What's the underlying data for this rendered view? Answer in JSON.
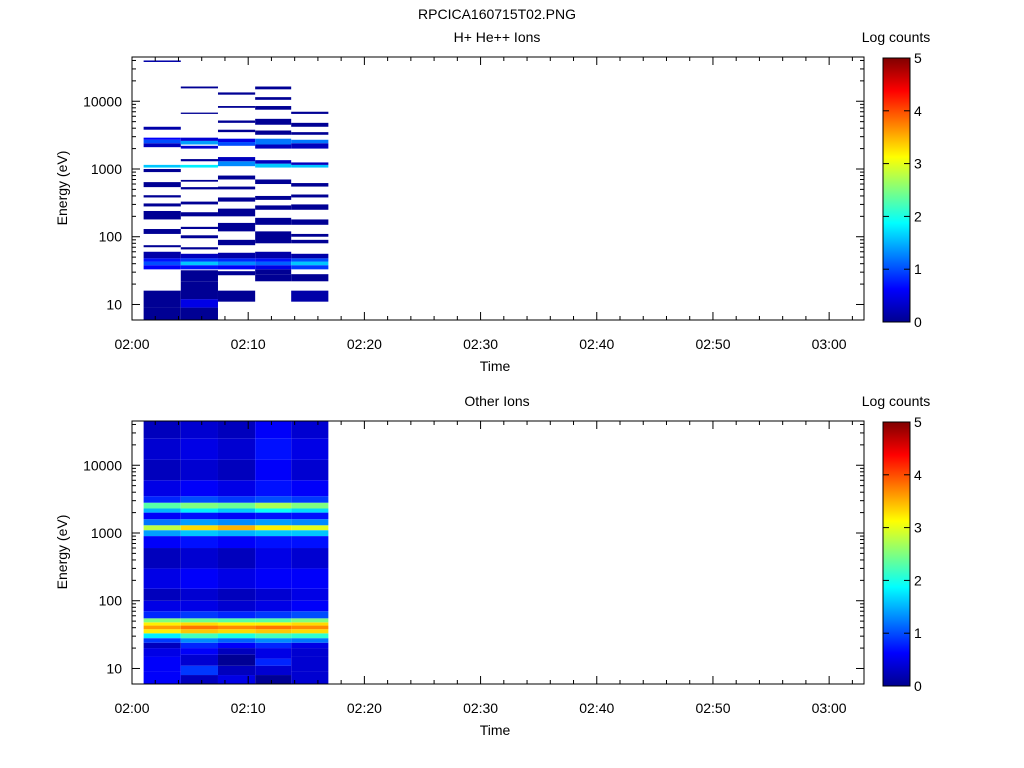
{
  "figure": {
    "title": "RPCICA160715T02.PNG"
  },
  "colorbar": {
    "label": "Log counts",
    "ticks": [
      "0",
      "1",
      "2",
      "3",
      "4",
      "5"
    ],
    "range": [
      0,
      5
    ],
    "colormap": "jet"
  },
  "chart_data": [
    {
      "type": "heatmap",
      "title": "H+ He++ Ions",
      "xlabel": "Time",
      "ylabel": "Energy (eV)",
      "x_ticks": [
        "02:00",
        "02:10",
        "02:20",
        "02:30",
        "02:40",
        "02:50",
        "03:00"
      ],
      "xlim_minutes": [
        0,
        63
      ],
      "y_ticks": [
        "10",
        "100",
        "1000",
        "10000"
      ],
      "ylim": [
        5.9,
        45000
      ],
      "y_scale": "log",
      "time_bins_minutes": [
        [
          1,
          4.2
        ],
        [
          4.2,
          7.4
        ],
        [
          7.4,
          10.6
        ],
        [
          10.6,
          13.7
        ],
        [
          13.7,
          16.9
        ]
      ],
      "columns": [
        [
          [
            6,
            9,
            0.1
          ],
          [
            9,
            16,
            0.1
          ],
          [
            33,
            38,
            0.6
          ],
          [
            38,
            43,
            1.0
          ],
          [
            43,
            48,
            0.7
          ],
          [
            48,
            60,
            0.2
          ],
          [
            70,
            75,
            0.1
          ],
          [
            110,
            130,
            0.1
          ],
          [
            180,
            240,
            0.1
          ],
          [
            280,
            310,
            0.1
          ],
          [
            380,
            410,
            0.1
          ],
          [
            540,
            640,
            0.1
          ],
          [
            900,
            1000,
            0.1
          ],
          [
            1050,
            1150,
            1.6
          ],
          [
            2100,
            2400,
            0.3
          ],
          [
            2400,
            2700,
            1.0
          ],
          [
            2700,
            2900,
            0.6
          ],
          [
            3800,
            4200,
            0.2
          ],
          [
            38000,
            40000,
            0.2
          ]
        ],
        [
          [
            6,
            9,
            0.1
          ],
          [
            9,
            12,
            0.5
          ],
          [
            12,
            22,
            0.1
          ],
          [
            22,
            32,
            0.1
          ],
          [
            33,
            38,
            0.7
          ],
          [
            38,
            43,
            1.6
          ],
          [
            43,
            48,
            0.9
          ],
          [
            48,
            56,
            0.3
          ],
          [
            65,
            70,
            0.1
          ],
          [
            95,
            105,
            0.1
          ],
          [
            130,
            140,
            0.1
          ],
          [
            200,
            230,
            0.1
          ],
          [
            300,
            330,
            0.1
          ],
          [
            500,
            540,
            0.1
          ],
          [
            650,
            690,
            0.1
          ],
          [
            1050,
            1150,
            1.8
          ],
          [
            1300,
            1400,
            0.1
          ],
          [
            2000,
            2200,
            0.4
          ],
          [
            2300,
            2600,
            1.4
          ],
          [
            2600,
            2900,
            0.4
          ],
          [
            6500,
            6800,
            0.1
          ],
          [
            15500,
            16500,
            0.1
          ]
        ],
        [
          [
            11,
            16,
            0.1
          ],
          [
            27,
            31,
            0.1
          ],
          [
            33,
            38,
            0.6
          ],
          [
            38,
            43,
            1.3
          ],
          [
            43,
            48,
            0.8
          ],
          [
            48,
            58,
            0.2
          ],
          [
            75,
            90,
            0.1
          ],
          [
            120,
            160,
            0.1
          ],
          [
            200,
            260,
            0.1
          ],
          [
            330,
            380,
            0.1
          ],
          [
            500,
            550,
            0.1
          ],
          [
            700,
            800,
            0.1
          ],
          [
            1100,
            1300,
            1.3
          ],
          [
            1300,
            1500,
            0.3
          ],
          [
            2200,
            2500,
            1.0
          ],
          [
            2500,
            2800,
            0.5
          ],
          [
            3500,
            3800,
            0.1
          ],
          [
            4800,
            5200,
            0.1
          ],
          [
            8000,
            8500,
            0.1
          ],
          [
            12500,
            13500,
            0.1
          ]
        ],
        [
          [
            22,
            28,
            0.1
          ],
          [
            28,
            33,
            0.1
          ],
          [
            33,
            38,
            0.5
          ],
          [
            38,
            43,
            1.1
          ],
          [
            43,
            48,
            0.7
          ],
          [
            48,
            60,
            0.2
          ],
          [
            80,
            120,
            0.1
          ],
          [
            150,
            190,
            0.1
          ],
          [
            250,
            290,
            0.1
          ],
          [
            350,
            400,
            0.1
          ],
          [
            600,
            700,
            0.1
          ],
          [
            1050,
            1200,
            1.6
          ],
          [
            1200,
            1350,
            0.3
          ],
          [
            2000,
            2300,
            0.3
          ],
          [
            2300,
            2800,
            1.2
          ],
          [
            3200,
            3700,
            0.1
          ],
          [
            4500,
            5500,
            0.1
          ],
          [
            7500,
            8500,
            0.1
          ],
          [
            10500,
            11500,
            0.1
          ],
          [
            15000,
            16500,
            0.1
          ]
        ],
        [
          [
            11,
            16,
            0.2
          ],
          [
            22,
            28,
            0.1
          ],
          [
            33,
            38,
            0.9
          ],
          [
            38,
            43,
            1.6
          ],
          [
            43,
            48,
            1.0
          ],
          [
            48,
            56,
            0.2
          ],
          [
            80,
            90,
            0.1
          ],
          [
            100,
            110,
            0.1
          ],
          [
            150,
            180,
            0.1
          ],
          [
            250,
            300,
            0.1
          ],
          [
            380,
            420,
            0.1
          ],
          [
            550,
            620,
            0.1
          ],
          [
            1050,
            1150,
            1.6
          ],
          [
            1150,
            1250,
            0.3
          ],
          [
            2000,
            2400,
            0.3
          ],
          [
            2400,
            2700,
            1.2
          ],
          [
            3200,
            3500,
            0.1
          ],
          [
            4200,
            4800,
            0.1
          ],
          [
            6500,
            7000,
            0.1
          ]
        ]
      ]
    },
    {
      "type": "heatmap",
      "title": "Other Ions",
      "xlabel": "Time",
      "ylabel": "Energy (eV)",
      "x_ticks": [
        "02:00",
        "02:10",
        "02:20",
        "02:30",
        "02:40",
        "02:50",
        "03:00"
      ],
      "xlim_minutes": [
        0,
        63
      ],
      "y_ticks": [
        "10",
        "100",
        "1000",
        "10000"
      ],
      "ylim": [
        5.9,
        45000
      ],
      "y_scale": "log",
      "time_bins_minutes": [
        [
          1,
          4.2
        ],
        [
          4.2,
          7.4
        ],
        [
          7.4,
          10.6
        ],
        [
          10.6,
          13.7
        ],
        [
          13.7,
          16.9
        ]
      ],
      "columns": [
        [
          [
            6,
            9,
            0.6
          ],
          [
            9,
            15,
            0.6
          ],
          [
            15,
            20,
            0.5
          ],
          [
            20,
            24,
            0.3
          ],
          [
            24,
            28,
            0.9
          ],
          [
            28,
            33,
            1.8
          ],
          [
            33,
            38,
            3.2
          ],
          [
            38,
            43,
            3.6
          ],
          [
            43,
            48,
            3.2
          ],
          [
            48,
            55,
            2.5
          ],
          [
            55,
            70,
            0.8
          ],
          [
            70,
            100,
            0.5
          ],
          [
            100,
            150,
            0.3
          ],
          [
            150,
            300,
            0.5
          ],
          [
            300,
            600,
            0.3
          ],
          [
            600,
            900,
            0.6
          ],
          [
            900,
            1100,
            1.4
          ],
          [
            1100,
            1300,
            2.8
          ],
          [
            1300,
            1600,
            1.2
          ],
          [
            1600,
            2000,
            0.6
          ],
          [
            2000,
            2300,
            1.5
          ],
          [
            2300,
            2800,
            2.3
          ],
          [
            2800,
            3500,
            0.8
          ],
          [
            3500,
            6000,
            0.5
          ],
          [
            6000,
            12000,
            0.3
          ],
          [
            12000,
            25000,
            0.4
          ],
          [
            25000,
            45000,
            0.3
          ]
        ],
        [
          [
            6,
            8,
            0.3
          ],
          [
            8,
            11,
            0.9
          ],
          [
            11,
            16,
            0.4
          ],
          [
            16,
            20,
            0.6
          ],
          [
            20,
            24,
            0.8
          ],
          [
            24,
            28,
            1.3
          ],
          [
            28,
            33,
            2.2
          ],
          [
            33,
            38,
            3.4
          ],
          [
            38,
            43,
            3.8
          ],
          [
            43,
            48,
            3.3
          ],
          [
            48,
            55,
            2.4
          ],
          [
            55,
            70,
            0.9
          ],
          [
            70,
            100,
            0.5
          ],
          [
            100,
            150,
            0.4
          ],
          [
            150,
            300,
            0.6
          ],
          [
            300,
            600,
            0.4
          ],
          [
            600,
            900,
            0.7
          ],
          [
            900,
            1100,
            1.6
          ],
          [
            1100,
            1300,
            3.3
          ],
          [
            1300,
            1600,
            1.4
          ],
          [
            1600,
            2000,
            0.7
          ],
          [
            2000,
            2300,
            1.8
          ],
          [
            2300,
            2800,
            2.5
          ],
          [
            2800,
            3500,
            1.0
          ],
          [
            3500,
            6000,
            0.6
          ],
          [
            6000,
            12000,
            0.4
          ],
          [
            12000,
            25000,
            0.5
          ],
          [
            25000,
            45000,
            0.4
          ]
        ],
        [
          [
            6,
            8,
            0.5
          ],
          [
            8,
            11,
            0.3
          ],
          [
            11,
            16,
            0.1
          ],
          [
            16,
            20,
            0.3
          ],
          [
            20,
            24,
            0.6
          ],
          [
            24,
            28,
            1.1
          ],
          [
            28,
            33,
            2.0
          ],
          [
            33,
            38,
            3.3
          ],
          [
            38,
            43,
            3.7
          ],
          [
            43,
            48,
            3.2
          ],
          [
            48,
            55,
            2.3
          ],
          [
            55,
            70,
            0.8
          ],
          [
            70,
            100,
            0.4
          ],
          [
            100,
            150,
            0.3
          ],
          [
            150,
            300,
            0.5
          ],
          [
            300,
            600,
            0.3
          ],
          [
            600,
            900,
            0.6
          ],
          [
            900,
            1100,
            1.5
          ],
          [
            1100,
            1300,
            3.5
          ],
          [
            1300,
            1600,
            1.3
          ],
          [
            1600,
            2000,
            0.6
          ],
          [
            2000,
            2300,
            1.6
          ],
          [
            2300,
            2800,
            2.4
          ],
          [
            2800,
            3500,
            0.9
          ],
          [
            3500,
            6000,
            0.5
          ],
          [
            6000,
            12000,
            0.3
          ],
          [
            12000,
            25000,
            0.4
          ],
          [
            25000,
            45000,
            0.3
          ]
        ],
        [
          [
            6,
            8,
            0.1
          ],
          [
            8,
            11,
            0.4
          ],
          [
            11,
            14,
            0.8
          ],
          [
            14,
            20,
            0.5
          ],
          [
            20,
            24,
            0.8
          ],
          [
            24,
            28,
            1.3
          ],
          [
            28,
            33,
            2.2
          ],
          [
            33,
            38,
            3.4
          ],
          [
            38,
            43,
            3.8
          ],
          [
            43,
            48,
            3.2
          ],
          [
            48,
            55,
            2.3
          ],
          [
            55,
            70,
            0.9
          ],
          [
            70,
            100,
            0.5
          ],
          [
            100,
            150,
            0.4
          ],
          [
            150,
            300,
            0.6
          ],
          [
            300,
            600,
            0.5
          ],
          [
            600,
            900,
            0.7
          ],
          [
            900,
            1100,
            1.6
          ],
          [
            1100,
            1300,
            3.2
          ],
          [
            1300,
            1600,
            1.4
          ],
          [
            1600,
            2000,
            0.7
          ],
          [
            2000,
            2300,
            1.9
          ],
          [
            2300,
            2800,
            2.7
          ],
          [
            2800,
            3500,
            1.0
          ],
          [
            3500,
            6000,
            0.7
          ],
          [
            6000,
            12000,
            0.6
          ],
          [
            12000,
            25000,
            0.7
          ],
          [
            25000,
            45000,
            0.6
          ]
        ],
        [
          [
            6,
            9,
            0.4
          ],
          [
            9,
            15,
            0.4
          ],
          [
            15,
            20,
            0.4
          ],
          [
            20,
            24,
            0.5
          ],
          [
            24,
            28,
            1.2
          ],
          [
            28,
            33,
            2.1
          ],
          [
            33,
            38,
            3.3
          ],
          [
            38,
            43,
            3.7
          ],
          [
            43,
            48,
            3.3
          ],
          [
            48,
            55,
            2.5
          ],
          [
            55,
            70,
            1.0
          ],
          [
            70,
            100,
            0.6
          ],
          [
            100,
            150,
            0.5
          ],
          [
            150,
            300,
            0.6
          ],
          [
            300,
            600,
            0.4
          ],
          [
            600,
            900,
            0.7
          ],
          [
            900,
            1100,
            1.6
          ],
          [
            1100,
            1300,
            3.0
          ],
          [
            1300,
            1600,
            1.3
          ],
          [
            1600,
            2000,
            0.7
          ],
          [
            2000,
            2300,
            1.7
          ],
          [
            2300,
            2800,
            2.5
          ],
          [
            2800,
            3500,
            0.9
          ],
          [
            3500,
            6000,
            0.6
          ],
          [
            6000,
            12000,
            0.4
          ],
          [
            12000,
            25000,
            0.5
          ],
          [
            25000,
            45000,
            0.4
          ]
        ]
      ]
    }
  ]
}
